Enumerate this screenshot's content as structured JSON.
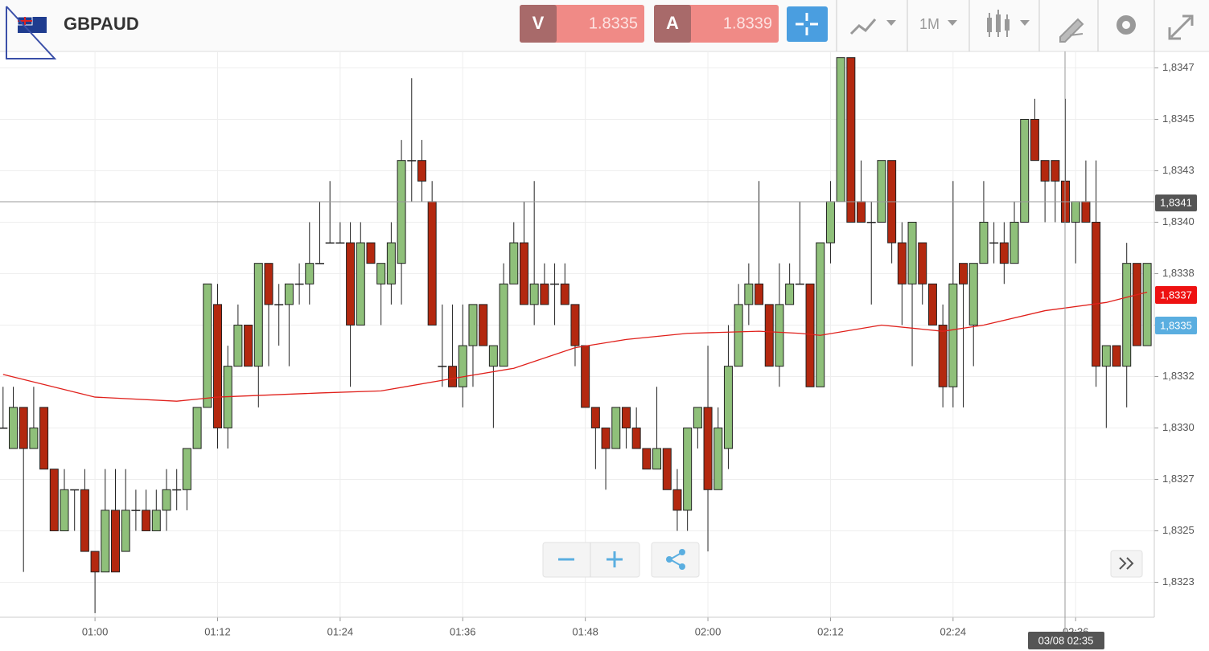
{
  "header": {
    "symbol": "GBPAUD",
    "sell_label": "V",
    "sell_price": 1.8335,
    "buy_label": "A",
    "buy_price": 1.8339,
    "timeframe": "1M"
  },
  "ui": {
    "crosshair_price": "1,8341",
    "bid_label": "1,8337",
    "ask_label": "1,8335",
    "crosshair_time": "03/08 02:35"
  },
  "chart_data": {
    "type": "candlestick",
    "grid": true,
    "up_color": "#8fc07a",
    "down_color": "#b3280f",
    "xlim": [
      50.7,
      163.7
    ],
    "ylim": [
      1.83208,
      1.83483
    ],
    "xticks": [
      {
        "value": 60,
        "label": "01:00"
      },
      {
        "value": 72,
        "label": "01:12"
      },
      {
        "value": 84,
        "label": "01:24"
      },
      {
        "value": 96,
        "label": "01:36"
      },
      {
        "value": 108,
        "label": "01:48"
      },
      {
        "value": 120,
        "label": "02:00"
      },
      {
        "value": 132,
        "label": "02:12"
      },
      {
        "value": 144,
        "label": "02:24"
      },
      {
        "value": 156,
        "label": "02:36"
      }
    ],
    "yticks": [
      {
        "value": 1.83475,
        "label": "1,8347"
      },
      {
        "value": 1.8345,
        "label": "1,8345"
      },
      {
        "value": 1.83425,
        "label": "1,8343"
      },
      {
        "value": 1.834,
        "label": "1,8340"
      },
      {
        "value": 1.83375,
        "label": "1,8338"
      },
      {
        "value": 1.8335,
        "label": "1,8335"
      },
      {
        "value": 1.83325,
        "label": "1,8332"
      },
      {
        "value": 1.833,
        "label": "1,8330"
      },
      {
        "value": 1.83275,
        "label": "1,8327"
      },
      {
        "value": 1.8325,
        "label": "1,8325"
      },
      {
        "value": 1.83225,
        "label": "1,8323"
      }
    ],
    "x": [
      51,
      52,
      53,
      54,
      55,
      56,
      57,
      58,
      59,
      60,
      61,
      62,
      63,
      64,
      65,
      66,
      67,
      68,
      69,
      70,
      71,
      72,
      73,
      74,
      75,
      76,
      77,
      78,
      79,
      80,
      81,
      82,
      83,
      84,
      85,
      86,
      87,
      88,
      89,
      90,
      91,
      92,
      93,
      94,
      95,
      96,
      97,
      98,
      99,
      100,
      101,
      102,
      103,
      104,
      105,
      106,
      107,
      108,
      109,
      110,
      111,
      112,
      113,
      114,
      115,
      116,
      117,
      118,
      119,
      120,
      121,
      122,
      123,
      124,
      125,
      126,
      127,
      128,
      129,
      130,
      131,
      132,
      133,
      134,
      135,
      136,
      137,
      138,
      139,
      140,
      141,
      142,
      143,
      144,
      145,
      146,
      147,
      148,
      149,
      150,
      151,
      152,
      153,
      154,
      155,
      156,
      157,
      158,
      159,
      160,
      161,
      162,
      163
    ],
    "open": [
      1.833,
      1.8329,
      1.8331,
      1.8329,
      1.8331,
      1.8328,
      1.8325,
      1.8327,
      1.8327,
      1.8324,
      1.8323,
      1.8326,
      1.8324,
      1.8326,
      1.8326,
      1.8325,
      1.8326,
      1.8327,
      1.8327,
      1.8329,
      1.8331,
      1.8336,
      1.833,
      1.8333,
      1.8335,
      1.8333,
      1.8338,
      1.8336,
      1.8336,
      1.8337,
      1.8337,
      1.8338,
      1.8339,
      1.8339,
      1.8339,
      1.8335,
      1.8339,
      1.8337,
      1.8337,
      1.8338,
      1.8343,
      1.8343,
      1.8341,
      1.8333,
      1.8333,
      1.8332,
      1.8334,
      1.8336,
      1.8333,
      1.8333,
      1.8337,
      1.8339,
      1.8336,
      1.8337,
      1.8337,
      1.8337,
      1.8336,
      1.8334,
      1.8331,
      1.833,
      1.8329,
      1.8331,
      1.833,
      1.8329,
      1.8328,
      1.8329,
      1.8327,
      1.8326,
      1.833,
      1.8331,
      1.8327,
      1.8329,
      1.8333,
      1.8336,
      1.8337,
      1.8336,
      1.8333,
      1.8336,
      1.8337,
      1.8337,
      1.8332,
      1.8339,
      1.8341,
      1.8348,
      1.8341,
      1.834,
      1.834,
      1.8343,
      1.8339,
      1.8337,
      1.8339,
      1.8337,
      1.8335,
      1.8332,
      1.8338,
      1.8335,
      1.8338,
      1.8339,
      1.8339,
      1.8338,
      1.834,
      1.8345,
      1.8343,
      1.8343,
      1.8342,
      1.834,
      1.8341,
      1.834,
      1.8333,
      1.8334,
      1.8333,
      1.8338,
      1.8334
    ],
    "high": [
      1.8332,
      1.8332,
      1.8331,
      1.8332,
      1.8331,
      1.8328,
      1.8328,
      1.8327,
      1.8328,
      1.8324,
      1.8328,
      1.8328,
      1.8328,
      1.8327,
      1.8327,
      1.8327,
      1.8328,
      1.8328,
      1.8329,
      1.8331,
      1.8337,
      1.8337,
      1.8334,
      1.8336,
      1.8335,
      1.8338,
      1.8338,
      1.8337,
      1.8337,
      1.8338,
      1.834,
      1.8341,
      1.8342,
      1.834,
      1.834,
      1.834,
      1.8339,
      1.8338,
      1.834,
      1.8344,
      1.8347,
      1.8344,
      1.8342,
      1.8336,
      1.8336,
      1.8336,
      1.8336,
      1.8336,
      1.8334,
      1.8338,
      1.834,
      1.8341,
      1.8342,
      1.8338,
      1.8338,
      1.8338,
      1.8336,
      1.8334,
      1.8331,
      1.833,
      1.8331,
      1.8331,
      1.8331,
      1.8329,
      1.8332,
      1.8329,
      1.8328,
      1.833,
      1.8331,
      1.8334,
      1.8331,
      1.8335,
      1.8337,
      1.8338,
      1.8342,
      1.8336,
      1.8338,
      1.8338,
      1.8341,
      1.8337,
      1.8339,
      1.8342,
      1.8348,
      1.8348,
      1.8343,
      1.8341,
      1.8343,
      1.8343,
      1.834,
      1.834,
      1.8339,
      1.8337,
      1.8336,
      1.8342,
      1.8338,
      1.8338,
      1.8342,
      1.834,
      1.834,
      1.8341,
      1.8345,
      1.8346,
      1.8343,
      1.8343,
      1.8346,
      1.8341,
      1.8343,
      1.8343,
      1.8334,
      1.8334,
      1.8339,
      1.8338,
      1.8338
    ],
    "low": [
      1.833,
      1.8329,
      1.8323,
      1.8329,
      1.8328,
      1.8325,
      1.8325,
      1.8325,
      1.8324,
      1.8321,
      1.8323,
      1.8323,
      1.8324,
      1.8325,
      1.8325,
      1.8325,
      1.8325,
      1.8326,
      1.8326,
      1.8329,
      1.8331,
      1.8329,
      1.8329,
      1.8333,
      1.8333,
      1.8331,
      1.8333,
      1.8334,
      1.8333,
      1.8336,
      1.8336,
      1.8338,
      1.8339,
      1.8339,
      1.8332,
      1.8335,
      1.8338,
      1.8335,
      1.8336,
      1.8336,
      1.8341,
      1.8341,
      1.8335,
      1.8332,
      1.8332,
      1.8331,
      1.8332,
      1.8334,
      1.833,
      1.8333,
      1.8337,
      1.8336,
      1.8335,
      1.8336,
      1.8335,
      1.8336,
      1.8333,
      1.8331,
      1.8328,
      1.8327,
      1.8329,
      1.8329,
      1.8329,
      1.8328,
      1.8328,
      1.8327,
      1.8325,
      1.8325,
      1.8329,
      1.8324,
      1.8327,
      1.8328,
      1.8333,
      1.8335,
      1.8336,
      1.8333,
      1.8332,
      1.8336,
      1.8337,
      1.8332,
      1.8332,
      1.8338,
      1.8341,
      1.834,
      1.834,
      1.8336,
      1.834,
      1.8338,
      1.8335,
      1.8333,
      1.8336,
      1.8335,
      1.8331,
      1.8331,
      1.8331,
      1.8333,
      1.8338,
      1.8338,
      1.8337,
      1.8338,
      1.834,
      1.8343,
      1.834,
      1.834,
      1.834,
      1.8338,
      1.834,
      1.8332,
      1.833,
      1.8333,
      1.8331,
      1.8334,
      1.8334
    ],
    "close": [
      1.833,
      1.8331,
      1.8329,
      1.833,
      1.8328,
      1.8325,
      1.8327,
      1.8327,
      1.8324,
      1.8323,
      1.8326,
      1.8323,
      1.8326,
      1.8326,
      1.8325,
      1.8326,
      1.8327,
      1.8327,
      1.8329,
      1.8331,
      1.8337,
      1.833,
      1.8333,
      1.8335,
      1.8333,
      1.8338,
      1.8336,
      1.8336,
      1.8337,
      1.8337,
      1.8338,
      1.8338,
      1.8339,
      1.8339,
      1.8335,
      1.8339,
      1.8338,
      1.8338,
      1.8339,
      1.8343,
      1.8343,
      1.8342,
      1.8335,
      1.8333,
      1.8332,
      1.8334,
      1.8336,
      1.8334,
      1.8334,
      1.8337,
      1.8339,
      1.8336,
      1.8337,
      1.8336,
      1.8337,
      1.8336,
      1.8334,
      1.8331,
      1.833,
      1.8329,
      1.8331,
      1.833,
      1.8329,
      1.8328,
      1.8329,
      1.8327,
      1.8326,
      1.833,
      1.8331,
      1.8327,
      1.833,
      1.8333,
      1.8336,
      1.8337,
      1.8336,
      1.8333,
      1.8336,
      1.8337,
      1.8337,
      1.8332,
      1.8339,
      1.8341,
      1.8348,
      1.834,
      1.834,
      1.834,
      1.8343,
      1.8339,
      1.8337,
      1.834,
      1.8337,
      1.8335,
      1.8332,
      1.8337,
      1.8337,
      1.8338,
      1.834,
      1.8339,
      1.8338,
      1.834,
      1.8345,
      1.8343,
      1.8342,
      1.8342,
      1.834,
      1.8341,
      1.834,
      1.8333,
      1.8334,
      1.8333,
      1.8338,
      1.8334,
      1.8338
    ],
    "moving_average": {
      "color": "#e0201b",
      "x": [
        51,
        60,
        68,
        72,
        82,
        88,
        95,
        101,
        107,
        112,
        118,
        125,
        129,
        131,
        137,
        143,
        147,
        153,
        159,
        163
      ],
      "values": [
        1.83326,
        1.83315,
        1.83313,
        1.83315,
        1.83317,
        1.83318,
        1.83324,
        1.83329,
        1.83339,
        1.83343,
        1.83346,
        1.83347,
        1.83346,
        1.83345,
        1.8335,
        1.83347,
        1.8335,
        1.83357,
        1.83361,
        1.83366
      ]
    }
  }
}
